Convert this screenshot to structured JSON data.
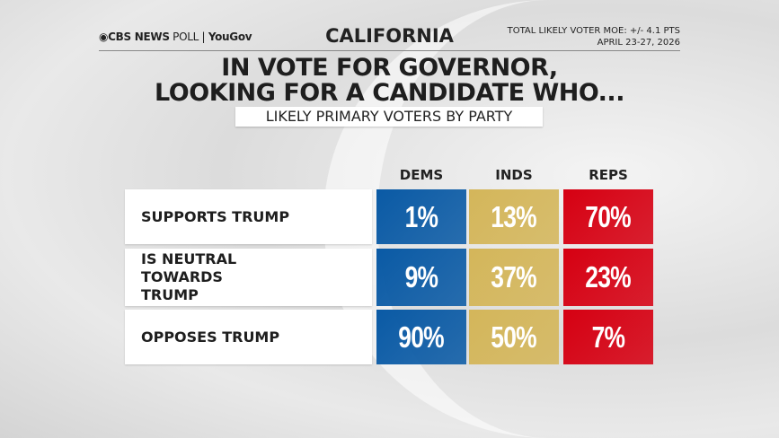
{
  "header": {
    "logo_text": "CBS NEWS POLL | YouGov",
    "state": "CALIFORNIA",
    "moe": "TOTAL LIKELY VOTER MOE: +/- 4.1 PTS",
    "dates": "APRIL 23-27, 2026"
  },
  "chart_data": {
    "type": "table",
    "title": "IN VOTE FOR GOVERNOR, LOOKING FOR A CANDIDATE WHO...",
    "title_lines": [
      "IN VOTE FOR GOVERNOR,",
      "LOOKING FOR A CANDIDATE WHO..."
    ],
    "subtitle": "LIKELY PRIMARY VOTERS BY PARTY",
    "columns": [
      "DEMS",
      "INDS",
      "REPS"
    ],
    "column_colors": [
      "#0a5aa5",
      "#d4b65a",
      "#d60012"
    ],
    "rows": [
      {
        "label": "SUPPORTS TRUMP",
        "values": [
          "1%",
          "13%",
          "70%"
        ]
      },
      {
        "label": "IS NEUTRAL TOWARDS TRUMP",
        "values": [
          "9%",
          "37%",
          "23%"
        ]
      },
      {
        "label": "OPPOSES TRUMP",
        "values": [
          "90%",
          "50%",
          "7%"
        ]
      }
    ]
  }
}
